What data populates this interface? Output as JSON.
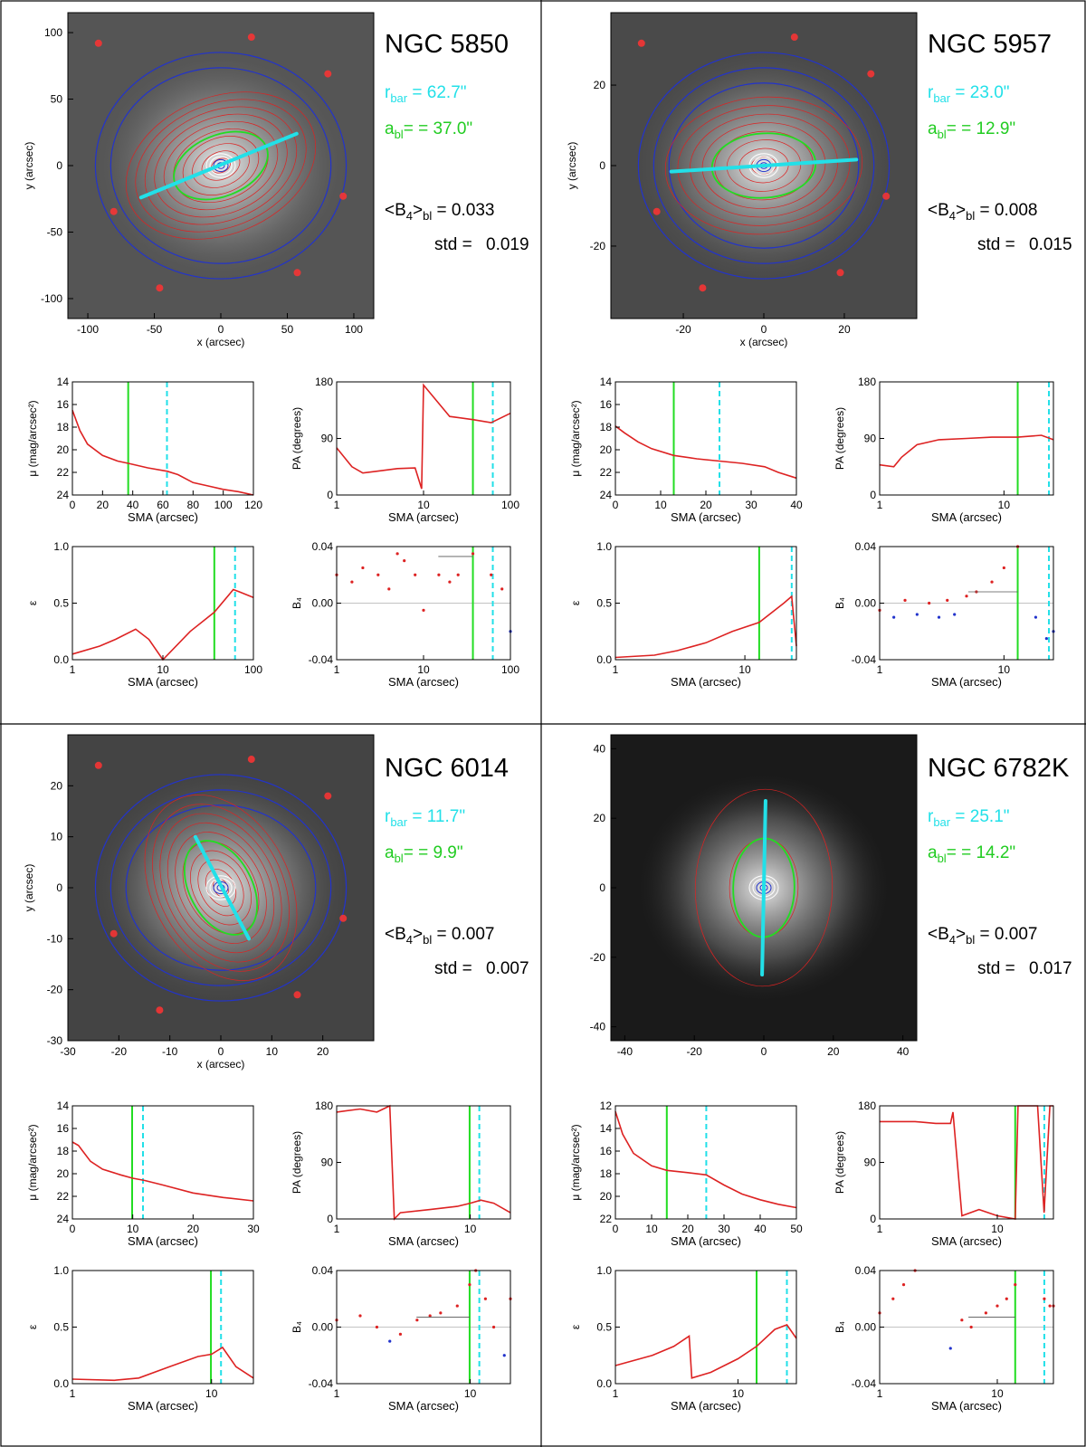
{
  "panels": [
    {
      "galaxy": "NGC 5850",
      "rbar_text": "r",
      "rbar_sub": "bar",
      "rbar_value": " = 62.7\"",
      "abl_text": "a",
      "abl_sub": "bl",
      "abl_value": "= = 37.0\"",
      "b4_label": "<B",
      "b4_sub4": "4",
      "b4_close": ">",
      "b4_subbl": "bl",
      "b4_value": " =  0.033",
      "std_label": "std =",
      "std_value": "0.019",
      "image": {
        "xticks": [
          "-100",
          "-50",
          "0",
          "50",
          "100"
        ],
        "yticks": [
          "100",
          "50",
          "0",
          "-50",
          "-100"
        ],
        "xlabel": "x (arcsec)",
        "ylabel": "y (arcsec)"
      },
      "mu": {
        "xticks": [
          "0",
          "20",
          "40",
          "60",
          "80",
          "100",
          "120"
        ],
        "yticks": [
          "14",
          "16",
          "18",
          "20",
          "22",
          "24"
        ],
        "xlabel": "SMA (arcsec)",
        "ylabel": "μ (mag/arcsec²)"
      },
      "pa": {
        "xticks": [
          "1",
          "10",
          "100"
        ],
        "yticks": [
          "180",
          "90",
          "0"
        ],
        "xlabel": "SMA (arcsec)",
        "ylabel": "PA (degrees)"
      },
      "eps": {
        "xticks": [
          "1",
          "10",
          "100"
        ],
        "yticks": [
          "1.0",
          "0.5",
          "0.0"
        ],
        "xlabel": "SMA (arcsec)",
        "ylabel": "ε"
      },
      "b4": {
        "xticks": [
          "1",
          "10",
          "100"
        ],
        "yticks": [
          "0.04",
          "0.00",
          "-0.04"
        ],
        "xlabel": "SMA (arcsec)",
        "ylabel": "B₄"
      }
    },
    {
      "galaxy": "NGC 5957",
      "rbar_text": "r",
      "rbar_sub": "bar",
      "rbar_value": " = 23.0\"",
      "abl_text": "a",
      "abl_sub": "bl",
      "abl_value": "= = 12.9\"",
      "b4_label": "<B",
      "b4_sub4": "4",
      "b4_close": ">",
      "b4_subbl": "bl",
      "b4_value": " =  0.008",
      "std_label": "std =",
      "std_value": "0.015",
      "image": {
        "xticks": [
          "-20",
          "0",
          "20"
        ],
        "yticks": [
          "20",
          "0",
          "-20"
        ],
        "xlabel": "x (arcsec)",
        "ylabel": "y (arcsec)"
      },
      "mu": {
        "xticks": [
          "0",
          "10",
          "20",
          "30",
          "40"
        ],
        "yticks": [
          "14",
          "16",
          "18",
          "20",
          "22",
          "24"
        ],
        "xlabel": "SMA (arcsec)",
        "ylabel": "μ (mag/arcsec²)"
      },
      "pa": {
        "xticks": [
          "1",
          "10"
        ],
        "yticks": [
          "180",
          "90",
          "0"
        ],
        "xlabel": "SMA (arcsec)",
        "ylabel": "PA (degrees)"
      },
      "eps": {
        "xticks": [
          "1",
          "10"
        ],
        "yticks": [
          "1.0",
          "0.5",
          "0.0"
        ],
        "xlabel": "SMA (arcsec)",
        "ylabel": "ε"
      },
      "b4": {
        "xticks": [
          "1",
          "10"
        ],
        "yticks": [
          "0.04",
          "0.00",
          "-0.04"
        ],
        "xlabel": "SMA (arcsec)",
        "ylabel": "B₄"
      }
    },
    {
      "galaxy": "NGC 6014",
      "rbar_text": "r",
      "rbar_sub": "bar",
      "rbar_value": " = 11.7\"",
      "abl_text": "a",
      "abl_sub": "bl",
      "abl_value": "= =  9.9\"",
      "b4_label": "<B",
      "b4_sub4": "4",
      "b4_close": ">",
      "b4_subbl": "bl",
      "b4_value": " =  0.007",
      "std_label": "std =",
      "std_value": "0.007",
      "image": {
        "xticks": [
          "-30",
          "-20",
          "-10",
          "0",
          "10",
          "20"
        ],
        "yticks": [
          "20",
          "10",
          "0",
          "-10",
          "-20",
          "-30"
        ],
        "xlabel": "x (arcsec)",
        "ylabel": "y (arcsec)"
      },
      "mu": {
        "xticks": [
          "0",
          "10",
          "20",
          "30"
        ],
        "yticks": [
          "14",
          "16",
          "18",
          "20",
          "22",
          "24"
        ],
        "xlabel": "SMA (arcsec)",
        "ylabel": "μ (mag/arcsec²)"
      },
      "pa": {
        "xticks": [
          "1",
          "10"
        ],
        "yticks": [
          "180",
          "90",
          "0"
        ],
        "xlabel": "SMA (arcsec)",
        "ylabel": "PA (degrees)"
      },
      "eps": {
        "xticks": [
          "1",
          "10"
        ],
        "yticks": [
          "1.0",
          "0.5",
          "0.0"
        ],
        "xlabel": "SMA (arcsec)",
        "ylabel": "ε"
      },
      "b4": {
        "xticks": [
          "1",
          "10"
        ],
        "yticks": [
          "0.04",
          "0.00",
          "-0.04"
        ],
        "xlabel": "SMA (arcsec)",
        "ylabel": "B₄"
      }
    },
    {
      "galaxy": "NGC 6782K",
      "rbar_text": "r",
      "rbar_sub": "bar",
      "rbar_value": " = 25.1\"",
      "abl_text": "a",
      "abl_sub": "bl",
      "abl_value": "= = 14.2\"",
      "b4_label": "<B",
      "b4_sub4": "4",
      "b4_close": ">",
      "b4_subbl": "bl",
      "b4_value": " =  0.007",
      "std_label": "std =",
      "std_value": "0.017",
      "image": {
        "xticks": [
          "-40",
          "-20",
          "0",
          "20",
          "40"
        ],
        "yticks": [
          "40",
          "20",
          "0",
          "-20",
          "-40"
        ],
        "xlabel": "",
        "ylabel": ""
      },
      "mu": {
        "xticks": [
          "0",
          "10",
          "20",
          "30",
          "40",
          "50"
        ],
        "yticks": [
          "12",
          "14",
          "16",
          "18",
          "20",
          "22"
        ],
        "xlabel": "SMA (arcsec)",
        "ylabel": "μ (mag/arcsec²)"
      },
      "pa": {
        "xticks": [
          "1",
          "10"
        ],
        "yticks": [
          "180",
          "90",
          "0"
        ],
        "xlabel": "SMA (arcsec)",
        "ylabel": "PA (degrees)"
      },
      "eps": {
        "xticks": [
          "1",
          "10"
        ],
        "yticks": [
          "1.0",
          "0.5",
          "0.0"
        ],
        "xlabel": "SMA (arcsec)",
        "ylabel": "ε"
      },
      "b4": {
        "xticks": [
          "1",
          "10"
        ],
        "yticks": [
          "0.04",
          "0.00",
          "-0.04"
        ],
        "xlabel": "SMA (arcsec)",
        "ylabel": "B₄"
      }
    }
  ],
  "colors": {
    "bar_line": "#22e0e8",
    "bl_ellipse": "#22dd22",
    "red_contour": "#dd2222",
    "blue_contour": "#2233cc",
    "rbar_text": "#22e0e8",
    "abl_text": "#22cc22"
  },
  "chart_data": [
    {
      "type": "line",
      "galaxy": "NGC 5850",
      "r_bar_arcsec": 62.7,
      "a_bl_arcsec": 37.0,
      "B4_bl_mean": 0.033,
      "B4_bl_std": 0.019,
      "bar_endpoints_arcsec": [
        [
          -60,
          -24
        ],
        [
          57,
          24
        ]
      ],
      "mu_profile": {
        "x": [
          0,
          5,
          10,
          20,
          30,
          37,
          50,
          63,
          70,
          80,
          90,
          100,
          110,
          120
        ],
        "y": [
          16.5,
          18.3,
          19.5,
          20.5,
          21.0,
          21.2,
          21.6,
          21.9,
          22.2,
          22.9,
          23.2,
          23.5,
          23.7,
          24.0
        ],
        "xlim": [
          0,
          120
        ],
        "ylim": [
          24,
          14
        ]
      },
      "pa_profile": {
        "x": [
          1,
          1.5,
          2,
          3,
          5,
          8,
          9.5,
          10,
          20,
          37,
          60,
          100
        ],
        "y": [
          75,
          45,
          35,
          38,
          42,
          43,
          10,
          175,
          125,
          120,
          115,
          130
        ],
        "xlim": [
          1,
          100
        ],
        "ylim": [
          0,
          180
        ],
        "xscale": "log"
      },
      "eps_profile": {
        "x": [
          1,
          2,
          3,
          5,
          7,
          10,
          20,
          37,
          60,
          70,
          100
        ],
        "y": [
          0.05,
          0.12,
          0.18,
          0.27,
          0.18,
          0.0,
          0.25,
          0.42,
          0.62,
          0.6,
          0.55
        ],
        "xlim": [
          1,
          100
        ],
        "ylim": [
          0,
          1
        ],
        "xscale": "log"
      },
      "b4_profile": {
        "x": [
          1,
          1.5,
          2,
          3,
          4,
          5,
          6,
          8,
          10,
          15,
          20,
          25,
          37,
          60,
          80,
          100
        ],
        "y": [
          0.02,
          0.015,
          0.025,
          0.02,
          0.01,
          0.035,
          0.03,
          0.02,
          -0.005,
          0.02,
          0.015,
          0.02,
          0.035,
          0.02,
          0.01,
          -0.02
        ],
        "xlim": [
          1,
          100
        ],
        "ylim": [
          -0.04,
          0.04
        ],
        "xscale": "log"
      }
    },
    {
      "type": "line",
      "galaxy": "NGC 5957",
      "r_bar_arcsec": 23.0,
      "a_bl_arcsec": 12.9,
      "B4_bl_mean": 0.008,
      "B4_bl_std": 0.015,
      "bar_endpoints_arcsec": [
        [
          -23,
          -1.5
        ],
        [
          23,
          1.5
        ]
      ],
      "mu_profile": {
        "x": [
          0,
          2,
          5,
          8,
          12.9,
          18,
          23,
          28,
          33,
          36,
          40
        ],
        "y": [
          17.9,
          18.5,
          19.3,
          19.9,
          20.5,
          20.8,
          21.0,
          21.2,
          21.5,
          22.0,
          22.5
        ],
        "xlim": [
          0,
          40
        ],
        "ylim": [
          24,
          14
        ]
      },
      "pa_profile": {
        "x": [
          1,
          1.3,
          1.5,
          2,
          3,
          5,
          8,
          12.9,
          20,
          25
        ],
        "y": [
          48,
          45,
          60,
          80,
          88,
          90,
          92,
          92,
          95,
          88
        ],
        "xlim": [
          1,
          25
        ],
        "ylim": [
          0,
          180
        ],
        "xscale": "log"
      },
      "eps_profile": {
        "x": [
          1,
          2,
          3,
          5,
          8,
          12.9,
          20,
          23,
          25
        ],
        "y": [
          0.02,
          0.04,
          0.08,
          0.15,
          0.25,
          0.33,
          0.5,
          0.56,
          0.12
        ],
        "xlim": [
          1,
          25
        ],
        "ylim": [
          0,
          1
        ],
        "xscale": "log"
      },
      "b4_profile": {
        "x": [
          1,
          1.3,
          1.6,
          2,
          2.5,
          3,
          3.5,
          4,
          5,
          6,
          8,
          10,
          12.9,
          18,
          22,
          25
        ],
        "y": [
          -0.005,
          -0.01,
          0.002,
          -0.008,
          0.0,
          -0.01,
          0.002,
          -0.008,
          0.005,
          0.008,
          0.015,
          0.025,
          0.04,
          -0.01,
          -0.025,
          -0.02
        ],
        "xlim": [
          1,
          25
        ],
        "ylim": [
          -0.04,
          0.04
        ],
        "xscale": "log"
      }
    },
    {
      "type": "line",
      "galaxy": "NGC 6014",
      "r_bar_arcsec": 11.7,
      "a_bl_arcsec": 9.9,
      "B4_bl_mean": 0.007,
      "B4_bl_std": 0.007,
      "bar_endpoints_arcsec": [
        [
          -5,
          10
        ],
        [
          5.5,
          -10
        ]
      ],
      "mu_profile": {
        "x": [
          0,
          1,
          2,
          3,
          5,
          8,
          10,
          12,
          15,
          20,
          25,
          30
        ],
        "y": [
          17.2,
          17.5,
          18.2,
          18.9,
          19.6,
          20.1,
          20.4,
          20.6,
          21.0,
          21.7,
          22.1,
          22.4
        ],
        "xlim": [
          0,
          30
        ],
        "ylim": [
          24,
          14
        ]
      },
      "pa_profile": {
        "x": [
          1,
          1.5,
          2,
          2.5,
          2.7,
          3,
          5,
          8,
          10,
          12,
          15,
          20
        ],
        "y": [
          170,
          175,
          170,
          180,
          0,
          10,
          15,
          20,
          25,
          30,
          25,
          10
        ],
        "xlim": [
          1,
          20
        ],
        "ylim": [
          0,
          180
        ],
        "xscale": "log"
      },
      "eps_profile": {
        "x": [
          1,
          2,
          3,
          5,
          8,
          10,
          12,
          15,
          20
        ],
        "y": [
          0.04,
          0.03,
          0.05,
          0.15,
          0.24,
          0.26,
          0.32,
          0.15,
          0.05
        ],
        "xlim": [
          1,
          20
        ],
        "ylim": [
          0,
          1
        ],
        "xscale": "log"
      },
      "b4_profile": {
        "x": [
          1,
          1.5,
          2,
          2.5,
          3,
          4,
          5,
          6,
          8,
          9.9,
          11,
          13,
          15,
          18,
          20
        ],
        "y": [
          0.005,
          0.008,
          0.0,
          -0.01,
          -0.005,
          0.005,
          0.008,
          0.01,
          0.015,
          0.03,
          0.04,
          0.02,
          0.0,
          -0.02,
          0.02
        ],
        "xlim": [
          1,
          20
        ],
        "ylim": [
          -0.04,
          0.04
        ],
        "xscale": "log"
      }
    },
    {
      "type": "line",
      "galaxy": "NGC 6782K",
      "r_bar_arcsec": 25.1,
      "a_bl_arcsec": 14.2,
      "B4_bl_mean": 0.007,
      "B4_bl_std": 0.017,
      "bar_endpoints_arcsec": [
        [
          0.5,
          25
        ],
        [
          -0.5,
          -25
        ]
      ],
      "mu_profile": {
        "x": [
          0,
          2,
          5,
          10,
          14.2,
          20,
          25.1,
          30,
          35,
          40,
          45,
          50
        ],
        "y": [
          12.5,
          14.5,
          16.2,
          17.3,
          17.7,
          17.9,
          18.1,
          19.0,
          19.8,
          20.3,
          20.7,
          21.0
        ],
        "xlim": [
          0,
          50
        ],
        "ylim": [
          22,
          12
        ]
      },
      "pa_profile": {
        "x": [
          1,
          2,
          3,
          4,
          4.2,
          5,
          7,
          10,
          14.2,
          15,
          20,
          22,
          25,
          28,
          30
        ],
        "y": [
          155,
          155,
          152,
          152,
          170,
          5,
          15,
          5,
          0,
          180,
          180,
          180,
          10,
          180,
          180
        ],
        "xlim": [
          1,
          30
        ],
        "ylim": [
          0,
          180
        ],
        "xscale": "log"
      },
      "eps_profile": {
        "x": [
          1,
          2,
          3,
          4,
          4.2,
          6,
          10,
          14.2,
          20,
          25.1,
          30
        ],
        "y": [
          0.16,
          0.25,
          0.33,
          0.42,
          0.05,
          0.1,
          0.22,
          0.33,
          0.48,
          0.52,
          0.4
        ],
        "xlim": [
          1,
          30
        ],
        "ylim": [
          0,
          1
        ],
        "xscale": "log"
      },
      "b4_profile": {
        "x": [
          1,
          1.3,
          1.6,
          2,
          4,
          5,
          6,
          8,
          10,
          12,
          14.2,
          25.1,
          28,
          30
        ],
        "y": [
          0.01,
          0.02,
          0.03,
          0.04,
          -0.015,
          0.005,
          0.0,
          0.01,
          0.015,
          0.02,
          0.03,
          0.02,
          0.015,
          0.015
        ],
        "xlim": [
          1,
          30
        ],
        "ylim": [
          -0.04,
          0.04
        ],
        "xscale": "log"
      }
    }
  ]
}
